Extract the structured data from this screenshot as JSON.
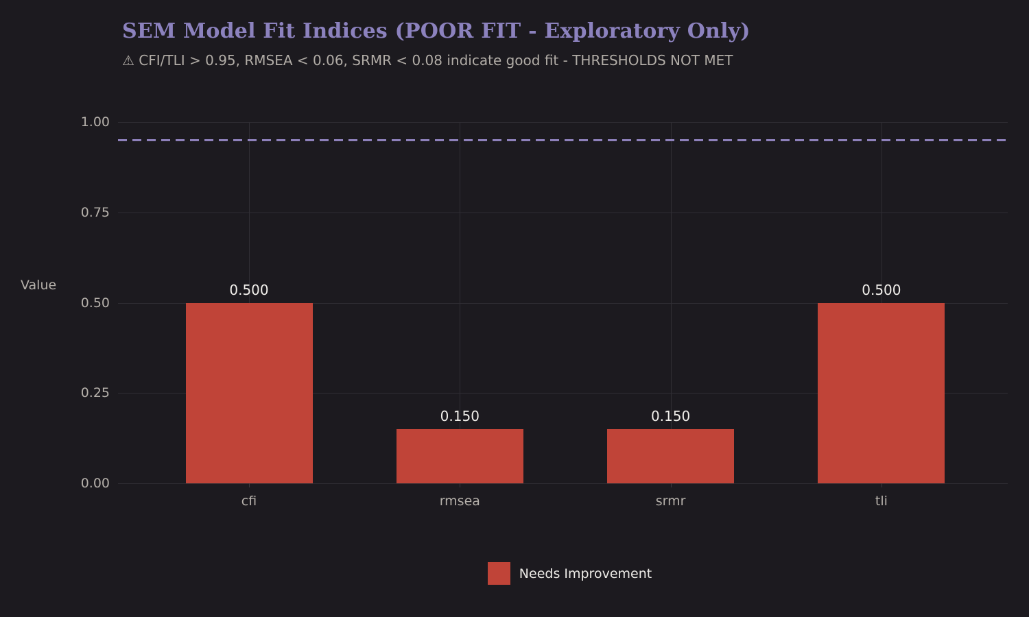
{
  "colors": {
    "background": "#1c1a1f",
    "title": "#8c82be",
    "subtitle": "#b2ada7",
    "axis_text": "#b5b0aa",
    "grid": "#302e34",
    "tick_mark": "#3c3a40",
    "bar": "#c04438",
    "bar_label": "#f1efeb",
    "threshold_line": "#8e81bb",
    "legend_text": "#edebe7"
  },
  "chart_data": {
    "type": "bar",
    "title": "SEM Model Fit Indices (POOR FIT - Exploratory Only)",
    "subtitle": "⚠ CFI/TLI > 0.95, RMSEA < 0.06, SRMR < 0.08 indicate good fit - THRESHOLDS NOT MET",
    "xlabel": "",
    "ylabel": "Value",
    "categories": [
      "cfi",
      "rmsea",
      "srmr",
      "tli"
    ],
    "values": [
      0.5,
      0.15,
      0.15,
      0.5
    ],
    "bar_labels": [
      "0.500",
      "0.150",
      "0.150",
      "0.500"
    ],
    "yticks": [
      0,
      0.25,
      0.5,
      0.75,
      1.0
    ],
    "ytick_labels": [
      "0.00",
      "0.25",
      "0.50",
      "0.75",
      "1.00"
    ],
    "ylim": [
      0,
      1.05
    ],
    "grid": true,
    "threshold": {
      "value": 0.95,
      "style": "dashed"
    },
    "legend": {
      "position": "bottom",
      "entries": [
        {
          "label": "Needs Improvement"
        }
      ]
    }
  }
}
